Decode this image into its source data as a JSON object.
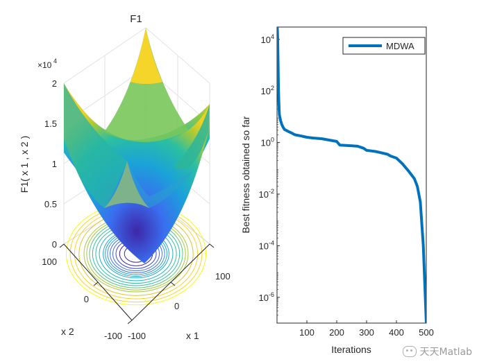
{
  "chart_data": [
    {
      "type": "surface",
      "title": "F1",
      "zlabel": "F1( x 1 , x 2 )",
      "xlabel": "x 1",
      "ylabel": "x 2",
      "exponent_label": "×10",
      "exponent_power": "4",
      "x_ticks": [
        "-100",
        "0",
        "100"
      ],
      "y_ticks": [
        "-100",
        "0",
        "100"
      ],
      "z_ticks": [
        "0",
        "0.5",
        "1",
        "1.5",
        "2"
      ],
      "xlim": [
        -100,
        100
      ],
      "ylim": [
        -100,
        100
      ],
      "zlim": [
        0,
        20000
      ],
      "colormap": "parula",
      "contour_levels": [
        500,
        1000,
        1500,
        2000,
        2500,
        3000,
        3500,
        4000,
        5000,
        6000,
        7000,
        8000,
        9000,
        10000,
        12000,
        14000,
        16000,
        18000
      ]
    },
    {
      "type": "line",
      "xlabel": "Iterations",
      "ylabel": "Best fitness obtained so far",
      "xlim": [
        0,
        500
      ],
      "ylim": [
        1e-07,
        30000
      ],
      "yscale": "log",
      "x_ticks": [
        "100",
        "200",
        "300",
        "400",
        "500"
      ],
      "y_ticks": [
        {
          "base": "10",
          "exp": "4",
          "value": 10000
        },
        {
          "base": "10",
          "exp": "2",
          "value": 100
        },
        {
          "base": "10",
          "exp": "0",
          "value": 1
        },
        {
          "base": "10",
          "exp": "-2",
          "value": 0.01
        },
        {
          "base": "10",
          "exp": "-4",
          "value": 0.0001
        },
        {
          "base": "10",
          "exp": "-6",
          "value": 1e-06
        }
      ],
      "legend_position": "top-right",
      "series": [
        {
          "name": "MDWA",
          "color": "#0072bd",
          "x": [
            1,
            2,
            3,
            4,
            5,
            6,
            7,
            8,
            10,
            12,
            14,
            16,
            20,
            25,
            30,
            40,
            50,
            60,
            70,
            80,
            90,
            100,
            120,
            150,
            200,
            210,
            250,
            270,
            290,
            300,
            330,
            350,
            370,
            380,
            400,
            420,
            440,
            460,
            470,
            480,
            490,
            500
          ],
          "y": [
            30000,
            12000,
            3000,
            600,
            120,
            40,
            20,
            12,
            9,
            7,
            6,
            5,
            4,
            3.2,
            3,
            2.6,
            2.3,
            2,
            1.9,
            1.8,
            1.7,
            1.6,
            1.5,
            1.4,
            1.1,
            0.8,
            0.75,
            0.72,
            0.6,
            0.5,
            0.45,
            0.4,
            0.35,
            0.3,
            0.25,
            0.15,
            0.08,
            0.04,
            0.02,
            0.005,
            0.0001,
            1e-07
          ]
        }
      ]
    }
  ],
  "watermark": "天天Matlab"
}
